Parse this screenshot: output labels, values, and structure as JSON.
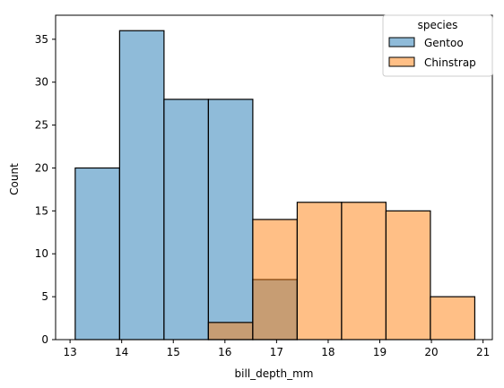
{
  "chart_data": {
    "type": "bar",
    "subtype": "overlaid histogram",
    "xlabel": "bill_depth_mm",
    "ylabel": "Count",
    "xlim": [
      12.72,
      21.18
    ],
    "ylim": [
      0,
      37.8
    ],
    "xticks": [
      13,
      14,
      15,
      16,
      17,
      18,
      19,
      20,
      21
    ],
    "yticks": [
      0,
      5,
      10,
      15,
      20,
      25,
      30,
      35
    ],
    "bin_edges": [
      13.1,
      13.96,
      14.82,
      15.68,
      16.54,
      17.4,
      18.26,
      19.12,
      19.98,
      20.84
    ],
    "series": [
      {
        "name": "Gentoo",
        "color": "#1f77b4",
        "values": [
          20,
          36,
          28,
          28,
          7,
          0,
          0,
          0,
          0
        ]
      },
      {
        "name": "Chinstrap",
        "color": "#ff7f0e",
        "values": [
          0,
          0,
          0,
          2,
          14,
          16,
          16,
          15,
          5
        ]
      }
    ],
    "legend": {
      "title": "species",
      "position": "top-right"
    },
    "grid": false
  }
}
